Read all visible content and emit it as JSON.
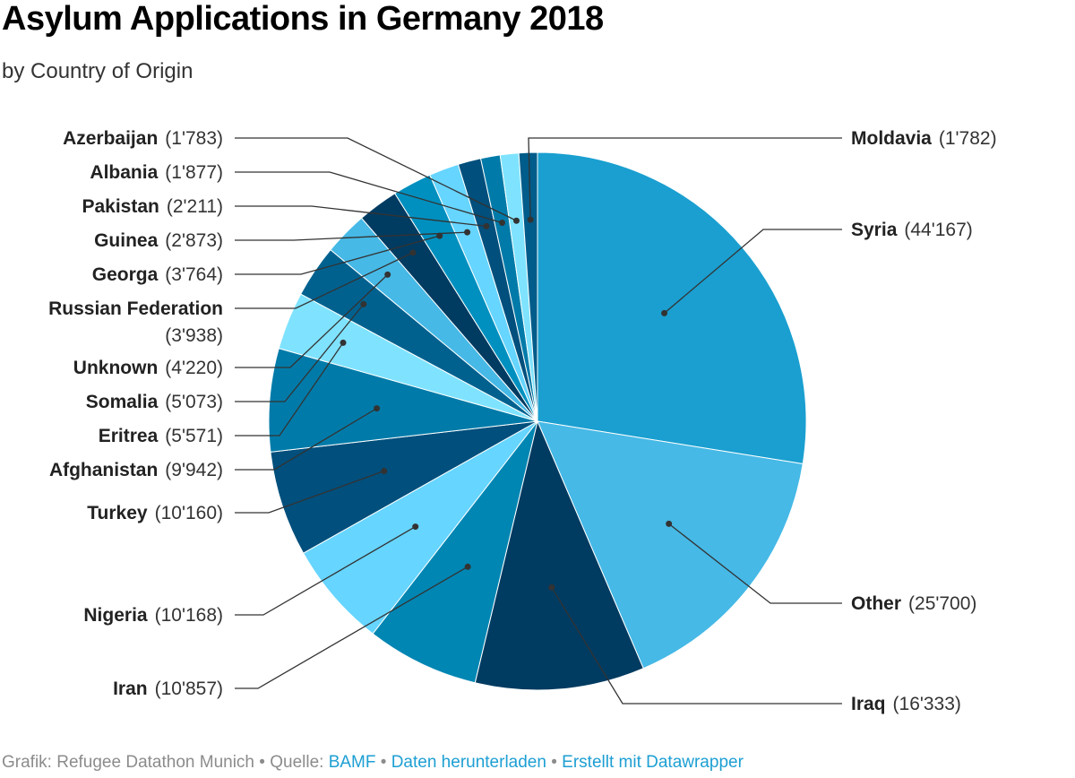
{
  "title": "Asylum Applications in Germany 2018",
  "subtitle": "by Country of Origin",
  "footer": {
    "credit": "Grafik: Refugee Datathon Munich",
    "source_prefix": "Quelle:",
    "source_link": "BAMF",
    "download_link": "Daten herunterladen",
    "made_with_link": "Erstellt mit Datawrapper",
    "separator": "•"
  },
  "chart_data": {
    "type": "pie",
    "title": "Asylum Applications in Germany 2018",
    "subtitle": "by Country of Origin",
    "slices": [
      {
        "name": "Syria",
        "value": 44167,
        "display": "44'167",
        "color": "#1a9fd0"
      },
      {
        "name": "Other",
        "value": 25700,
        "display": "25'700",
        "color": "#46b9e6"
      },
      {
        "name": "Iraq",
        "value": 16333,
        "display": "16'333",
        "color": "#003b61"
      },
      {
        "name": "Iran",
        "value": 10857,
        "display": "10'857",
        "color": "#0086b3"
      },
      {
        "name": "Nigeria",
        "value": 10168,
        "display": "10'168",
        "color": "#66d5ff"
      },
      {
        "name": "Turkey",
        "value": 10160,
        "display": "10'160",
        "color": "#004f7c"
      },
      {
        "name": "Afghanistan",
        "value": 9942,
        "display": "9'942",
        "color": "#007ba9"
      },
      {
        "name": "Eritrea",
        "value": 5571,
        "display": "5'571",
        "color": "#7fe3ff"
      },
      {
        "name": "Somalia",
        "value": 5073,
        "display": "5'073",
        "color": "#00618f"
      },
      {
        "name": "Unknown",
        "value": 4220,
        "display": "4'220",
        "color": "#46b9e6"
      },
      {
        "name": "Russian Federation",
        "value": 3938,
        "display": "3'938",
        "color": "#003b61"
      },
      {
        "name": "Georga",
        "value": 3764,
        "display": "3'764",
        "color": "#0090bf"
      },
      {
        "name": "Guinea",
        "value": 2873,
        "display": "2'873",
        "color": "#66d5ff"
      },
      {
        "name": "Pakistan",
        "value": 2211,
        "display": "2'211",
        "color": "#004f7c"
      },
      {
        "name": "Albania",
        "value": 1877,
        "display": "1'877",
        "color": "#007ba9"
      },
      {
        "name": "Azerbaijan",
        "value": 1783,
        "display": "1'783",
        "color": "#7fe3ff"
      },
      {
        "name": "Moldavia",
        "value": 1782,
        "display": "1'782",
        "color": "#005c8a"
      }
    ],
    "legend": "none (labels with leader lines)"
  }
}
